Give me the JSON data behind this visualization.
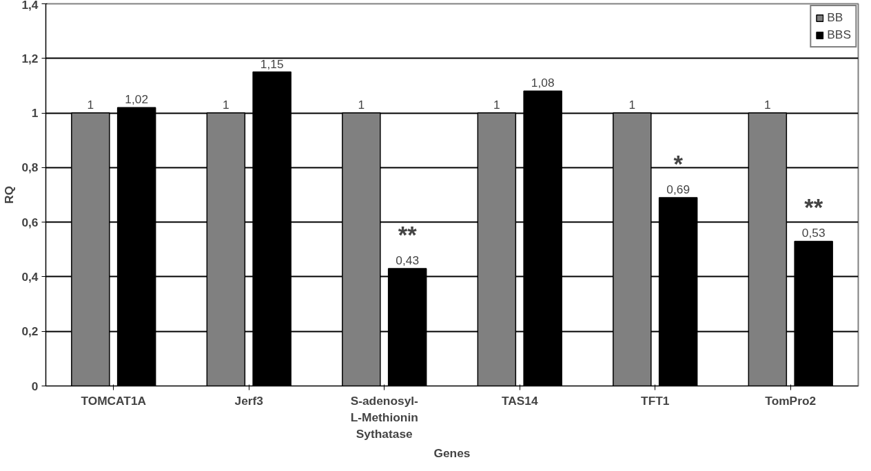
{
  "chart_data": {
    "type": "bar",
    "xlabel": "Genes",
    "ylabel": "RQ",
    "categories": [
      "TOMCAT1A",
      "Jerf3",
      "S-adenosyl-\nL-Methionin\nSythatase",
      "TAS14",
      "TFT1",
      "TomPro2"
    ],
    "series": [
      {
        "name": "BB",
        "color": "#808080",
        "values": [
          1,
          1,
          1,
          1,
          1,
          1
        ],
        "value_labels": [
          "1",
          "1",
          "1",
          "1",
          "1",
          "1"
        ]
      },
      {
        "name": "BBS",
        "color": "#000000",
        "values": [
          1.02,
          1.15,
          0.43,
          1.08,
          0.69,
          0.53
        ],
        "value_labels": [
          "1,02",
          "1,15",
          "0,43",
          "1,08",
          "0,69",
          "0,53"
        ]
      }
    ],
    "ylim": [
      0,
      1.4
    ],
    "yticks": [
      0,
      {
        "value": 0.2,
        "label": "0,2"
      },
      {
        "value": 0.4,
        "label": "0,4"
      },
      {
        "value": 0.6,
        "label": "0,6"
      },
      {
        "value": 0.8,
        "label": "0,8"
      },
      1,
      {
        "value": 1.2,
        "label": "1,2"
      },
      {
        "value": 1.4,
        "label": "1,4"
      }
    ],
    "grid": "y",
    "legend": "top right",
    "annotations": [
      "**",
      "*",
      "**"
    ]
  }
}
